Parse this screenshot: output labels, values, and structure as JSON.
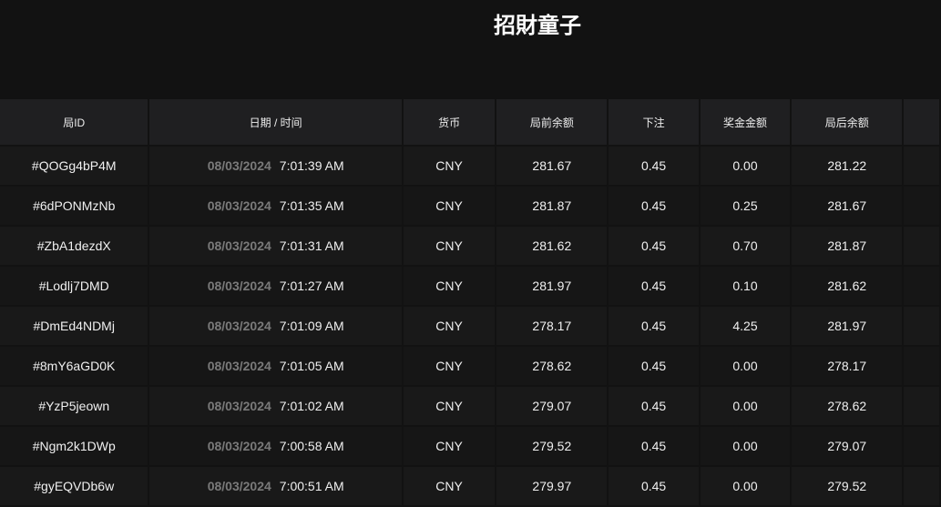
{
  "title": "招財童子",
  "columns": [
    "局ID",
    "日期 / 时间",
    "货币",
    "局前余额",
    "下注",
    "奖金金额",
    "局后余额",
    ""
  ],
  "rows": [
    {
      "id": "#QOGg4bP4M",
      "date": "08/03/2024",
      "time": "7:01:39 AM",
      "currency": "CNY",
      "before": "281.67",
      "bet": "0.45",
      "win": "0.00",
      "after": "281.22"
    },
    {
      "id": "#6dPONMzNb",
      "date": "08/03/2024",
      "time": "7:01:35 AM",
      "currency": "CNY",
      "before": "281.87",
      "bet": "0.45",
      "win": "0.25",
      "after": "281.67"
    },
    {
      "id": "#ZbA1dezdX",
      "date": "08/03/2024",
      "time": "7:01:31 AM",
      "currency": "CNY",
      "before": "281.62",
      "bet": "0.45",
      "win": "0.70",
      "after": "281.87"
    },
    {
      "id": "#Lodlj7DMD",
      "date": "08/03/2024",
      "time": "7:01:27 AM",
      "currency": "CNY",
      "before": "281.97",
      "bet": "0.45",
      "win": "0.10",
      "after": "281.62"
    },
    {
      "id": "#DmEd4NDMj",
      "date": "08/03/2024",
      "time": "7:01:09 AM",
      "currency": "CNY",
      "before": "278.17",
      "bet": "0.45",
      "win": "4.25",
      "after": "281.97"
    },
    {
      "id": "#8mY6aGD0K",
      "date": "08/03/2024",
      "time": "7:01:05 AM",
      "currency": "CNY",
      "before": "278.62",
      "bet": "0.45",
      "win": "0.00",
      "after": "278.17"
    },
    {
      "id": "#YzP5jeown",
      "date": "08/03/2024",
      "time": "7:01:02 AM",
      "currency": "CNY",
      "before": "279.07",
      "bet": "0.45",
      "win": "0.00",
      "after": "278.62"
    },
    {
      "id": "#Ngm2k1DWp",
      "date": "08/03/2024",
      "time": "7:00:58 AM",
      "currency": "CNY",
      "before": "279.52",
      "bet": "0.45",
      "win": "0.00",
      "after": "279.07"
    },
    {
      "id": "#gyEQVDb6w",
      "date": "08/03/2024",
      "time": "7:00:51 AM",
      "currency": "CNY",
      "before": "279.97",
      "bet": "0.45",
      "win": "0.00",
      "after": "279.52"
    }
  ]
}
